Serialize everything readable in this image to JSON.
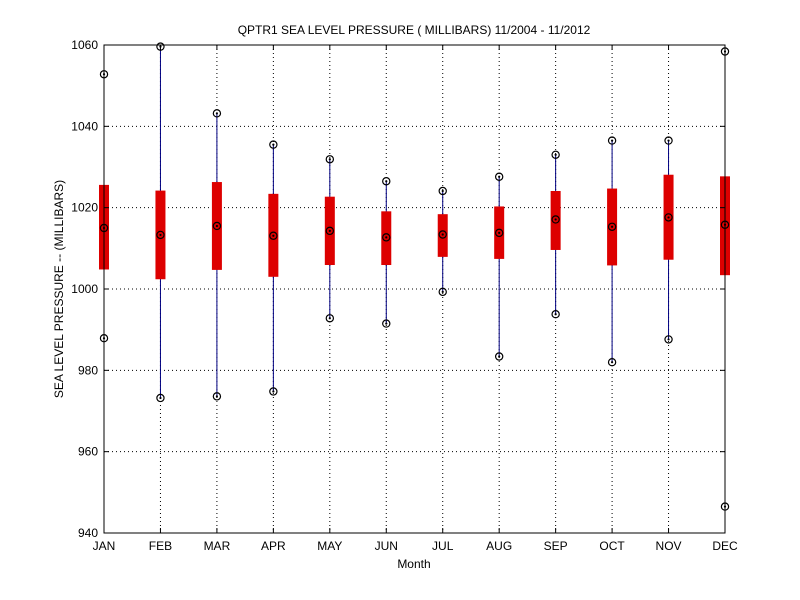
{
  "chart_data": {
    "type": "box",
    "title": "QPTR1  SEA LEVEL PRESSURE ( MILLIBARS) 11/2004 - 11/2012",
    "xlabel": "Month",
    "ylabel": "SEA LEVEL PRESSURE -- (MILLIBARS)",
    "ylim": [
      940,
      1060
    ],
    "yticks": [
      940,
      960,
      980,
      1000,
      1020,
      1040,
      1060
    ],
    "grid": true,
    "categories": [
      "JAN",
      "FEB",
      "MAR",
      "APR",
      "MAY",
      "JUN",
      "JUL",
      "AUG",
      "SEP",
      "OCT",
      "NOV",
      "DEC"
    ],
    "series": [
      {
        "min": [
          987.9,
          973.2,
          973.6,
          974.8,
          992.8,
          991.5,
          999.3,
          983.4,
          993.8,
          982.0,
          987.6,
          946.5
        ],
        "q1": [
          1004.8,
          1002.4,
          1004.7,
          1003.0,
          1005.9,
          1005.9,
          1007.9,
          1007.4,
          1009.6,
          1005.8,
          1007.2,
          1003.4
        ],
        "median": [
          1015.0,
          1013.3,
          1015.5,
          1013.1,
          1014.3,
          1012.7,
          1013.4,
          1013.8,
          1017.1,
          1015.3,
          1017.6,
          1015.8
        ],
        "q3": [
          1025.6,
          1024.2,
          1026.3,
          1023.4,
          1022.7,
          1019.1,
          1018.4,
          1020.3,
          1024.1,
          1024.7,
          1028.1,
          1027.7
        ],
        "max": [
          1052.8,
          1059.6,
          1043.2,
          1035.5,
          1031.9,
          1026.5,
          1024.1,
          1027.6,
          1033.0,
          1036.5,
          1036.5,
          1058.4
        ]
      }
    ],
    "colors": {
      "box": "#dd0000",
      "whisker": "#000080",
      "marker": "#000000"
    }
  }
}
